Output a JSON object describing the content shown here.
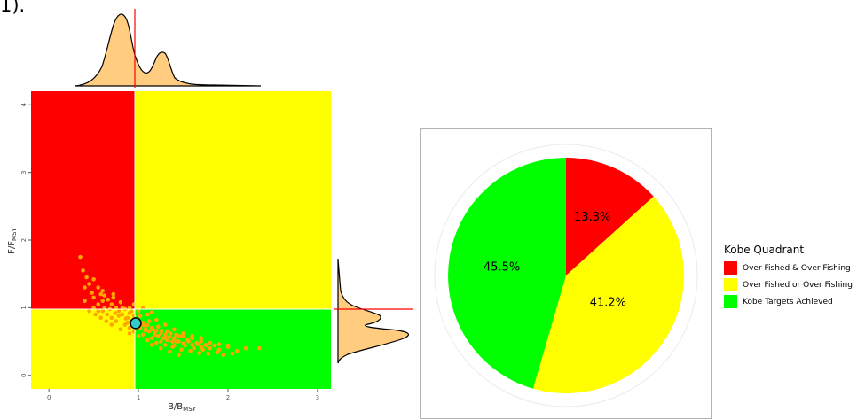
{
  "fragment_text": "1).",
  "chart_data": [
    {
      "type": "scatter",
      "xlabel_main": "B/B",
      "xlabel_sub": "MSY",
      "ylabel_main": "F/F",
      "ylabel_sub": "MSY",
      "xlim": [
        -0.2,
        3.15
      ],
      "ylim": [
        -0.2,
        4.2
      ],
      "x_ticks": [
        0,
        1,
        2,
        3
      ],
      "y_ticks": [
        0,
        1,
        2,
        3,
        4
      ],
      "reference_lines": {
        "x": 1,
        "y": 1
      },
      "quadrants": [
        {
          "name": "top-left",
          "color": "#ff0000"
        },
        {
          "name": "top-right",
          "color": "#ffff00"
        },
        {
          "name": "bottom-left",
          "color": "#ffff00"
        },
        {
          "name": "bottom-right",
          "color": "#00ff00"
        }
      ],
      "point_color": "#ffa500",
      "current_estimate": {
        "x": 0.97,
        "y": 0.77,
        "color": "#33cccc"
      },
      "points": [
        [
          0.35,
          1.75
        ],
        [
          0.38,
          1.55
        ],
        [
          0.42,
          1.45
        ],
        [
          0.45,
          1.35
        ],
        [
          0.5,
          1.42
        ],
        [
          0.55,
          1.3
        ],
        [
          0.6,
          1.25
        ],
        [
          0.62,
          1.18
        ],
        [
          0.66,
          1.12
        ],
        [
          0.7,
          1.05
        ],
        [
          0.72,
          1.15
        ],
        [
          0.75,
          1.0
        ],
        [
          0.78,
          0.95
        ],
        [
          0.8,
          1.08
        ],
        [
          0.82,
          0.9
        ],
        [
          0.85,
          0.98
        ],
        [
          0.88,
          0.85
        ],
        [
          0.9,
          0.92
        ],
        [
          0.92,
          0.8
        ],
        [
          0.95,
          0.88
        ],
        [
          0.98,
          0.75
        ],
        [
          1.0,
          0.82
        ],
        [
          1.02,
          0.7
        ],
        [
          1.05,
          0.78
        ],
        [
          1.08,
          0.68
        ],
        [
          1.1,
          0.74
        ],
        [
          1.12,
          0.65
        ],
        [
          1.15,
          0.7
        ],
        [
          1.18,
          0.6
        ],
        [
          1.2,
          0.66
        ],
        [
          1.22,
          0.58
        ],
        [
          1.25,
          0.62
        ],
        [
          1.28,
          0.55
        ],
        [
          1.3,
          0.6
        ],
        [
          1.32,
          0.52
        ],
        [
          1.35,
          0.57
        ],
        [
          1.38,
          0.5
        ],
        [
          1.4,
          0.55
        ],
        [
          1.45,
          0.5
        ],
        [
          1.5,
          0.47
        ],
        [
          1.55,
          0.52
        ],
        [
          1.6,
          0.45
        ],
        [
          1.65,
          0.48
        ],
        [
          1.7,
          0.42
        ],
        [
          1.75,
          0.45
        ],
        [
          1.8,
          0.4
        ],
        [
          1.9,
          0.38
        ],
        [
          2.0,
          0.42
        ],
        [
          2.1,
          0.36
        ],
        [
          2.2,
          0.4
        ],
        [
          2.35,
          0.4
        ],
        [
          1.95,
          0.3
        ],
        [
          2.05,
          0.32
        ],
        [
          1.15,
          0.45
        ],
        [
          1.25,
          0.4
        ],
        [
          1.35,
          0.35
        ],
        [
          1.45,
          0.3
        ],
        [
          0.6,
          0.95
        ],
        [
          0.65,
          0.9
        ],
        [
          0.7,
          0.85
        ],
        [
          0.75,
          0.8
        ],
        [
          0.85,
          0.75
        ],
        [
          0.9,
          0.7
        ],
        [
          0.95,
          0.65
        ],
        [
          1.05,
          0.6
        ],
        [
          1.15,
          0.55
        ],
        [
          1.25,
          0.5
        ],
        [
          1.4,
          0.44
        ],
        [
          0.55,
          1.05
        ],
        [
          0.6,
          1.1
        ],
        [
          0.5,
          1.15
        ],
        [
          0.68,
          0.98
        ],
        [
          0.78,
          0.88
        ],
        [
          0.88,
          0.78
        ],
        [
          0.98,
          0.72
        ],
        [
          1.08,
          0.66
        ],
        [
          1.18,
          0.63
        ],
        [
          1.3,
          0.57
        ],
        [
          1.42,
          0.5
        ],
        [
          1.52,
          0.44
        ],
        [
          1.62,
          0.4
        ],
        [
          1.72,
          0.38
        ],
        [
          0.72,
          1.2
        ],
        [
          0.82,
          1.0
        ],
        [
          0.92,
          0.95
        ],
        [
          1.02,
          0.88
        ],
        [
          1.12,
          0.8
        ],
        [
          1.22,
          0.72
        ],
        [
          1.32,
          0.65
        ],
        [
          1.42,
          0.6
        ],
        [
          1.5,
          0.58
        ],
        [
          1.6,
          0.55
        ],
        [
          0.4,
          1.3
        ],
        [
          0.48,
          1.22
        ],
        [
          0.58,
          1.2
        ],
        [
          1.7,
          0.5
        ],
        [
          1.8,
          0.48
        ],
        [
          1.85,
          0.44
        ],
        [
          0.45,
          0.95
        ],
        [
          0.52,
          0.9
        ],
        [
          0.58,
          0.85
        ],
        [
          0.64,
          0.8
        ],
        [
          0.7,
          0.75
        ],
        [
          0.8,
          0.68
        ],
        [
          0.9,
          0.62
        ],
        [
          1.0,
          0.58
        ],
        [
          1.1,
          0.52
        ],
        [
          1.2,
          0.48
        ],
        [
          1.3,
          0.45
        ],
        [
          1.38,
          0.42
        ],
        [
          1.48,
          0.38
        ],
        [
          1.58,
          0.36
        ],
        [
          1.68,
          0.33
        ],
        [
          1.78,
          0.32
        ],
        [
          1.88,
          0.34
        ],
        [
          0.62,
          1.0
        ],
        [
          0.74,
          0.92
        ],
        [
          0.86,
          0.84
        ],
        [
          0.96,
          0.8
        ],
        [
          1.06,
          0.74
        ],
        [
          1.16,
          0.68
        ],
        [
          1.26,
          0.66
        ],
        [
          1.36,
          0.62
        ],
        [
          1.46,
          0.58
        ],
        [
          1.56,
          0.5
        ],
        [
          1.66,
          0.46
        ],
        [
          1.76,
          0.44
        ],
        [
          0.9,
          1.0
        ],
        [
          1.0,
          0.95
        ],
        [
          1.1,
          0.9
        ],
        [
          1.2,
          0.82
        ],
        [
          1.3,
          0.75
        ],
        [
          1.4,
          0.68
        ],
        [
          1.5,
          0.62
        ],
        [
          1.6,
          0.58
        ],
        [
          1.7,
          0.55
        ],
        [
          0.95,
          1.05
        ],
        [
          1.05,
          1.0
        ],
        [
          1.15,
          0.93
        ],
        [
          0.5,
          1.0
        ],
        [
          0.55,
          0.95
        ],
        [
          0.4,
          1.1
        ],
        [
          1.9,
          0.46
        ],
        [
          2.0,
          0.44
        ]
      ]
    },
    {
      "type": "pie",
      "legend_title": "Kobe Quadrant",
      "slices": [
        {
          "label": "Over Fished & Over Fishing",
          "value": 13.3,
          "text": "13.3%",
          "color": "#ff0000"
        },
        {
          "label": "Over Fished or Over Fishing",
          "value": 41.2,
          "text": "41.2%",
          "color": "#ffff00"
        },
        {
          "label": "Kobe Targets Achieved",
          "value": 45.5,
          "text": "45.5%",
          "color": "#00ff00"
        }
      ]
    }
  ]
}
